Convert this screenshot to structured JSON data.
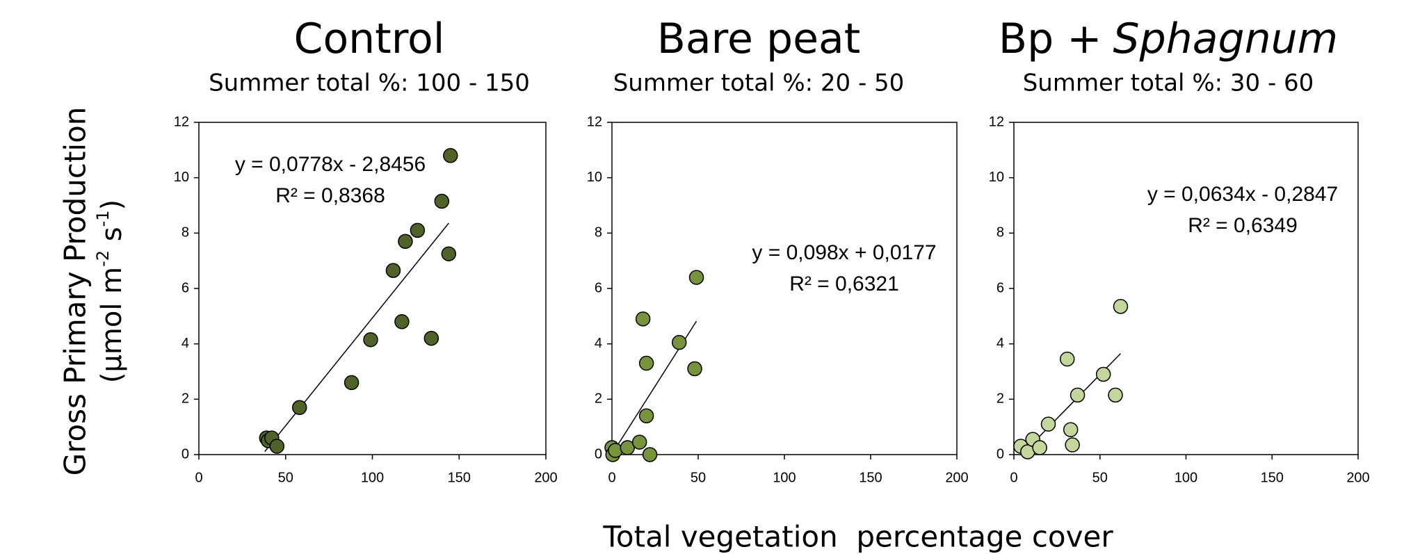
{
  "y_label": "Gross Primary Production",
  "y_unit_parts": [
    "(µmol m",
    "-2",
    " s",
    "-1",
    ")"
  ],
  "x_label": "Total vegetation  percentage cover",
  "chart_data": [
    {
      "type": "scatter",
      "title": "Control",
      "subtitle": "Summer total %: 100 - 150",
      "color": "#4f6228",
      "x": [
        39,
        40,
        42,
        45,
        58,
        88,
        99,
        112,
        117,
        119,
        126,
        134,
        140,
        144,
        145
      ],
      "values": [
        0.6,
        0.5,
        0.6,
        0.3,
        1.7,
        2.6,
        4.15,
        6.65,
        4.8,
        7.7,
        8.1,
        4.2,
        9.15,
        7.25,
        10.8
      ],
      "trendline": {
        "x": [
          38,
          144
        ],
        "y": [
          0.11,
          8.36
        ]
      },
      "equation": "y = 0,0778x - 2,8456",
      "r2": "R² = 0,8368",
      "xlim": [
        0,
        200
      ],
      "xticks": [
        0,
        50,
        100,
        150,
        200
      ],
      "ylim": [
        0,
        12
      ],
      "yticks": [
        0,
        2,
        4,
        6,
        8,
        10,
        12
      ]
    },
    {
      "type": "scatter",
      "title": "Bare peat",
      "subtitle": "Summer total %: 20 - 50",
      "color": "#77933c",
      "x": [
        0,
        0.5,
        2,
        9,
        16,
        18,
        20,
        20,
        22,
        39,
        48,
        49
      ],
      "values": [
        0.25,
        0,
        0.15,
        0.25,
        0.45,
        4.9,
        3.3,
        1.4,
        0,
        4.05,
        3.1,
        6.4
      ],
      "trendline": {
        "x": [
          0,
          49
        ],
        "y": [
          0.02,
          4.82
        ]
      },
      "equation": "y = 0,098x + 0,0177",
      "r2": "R² = 0,6321",
      "xlim": [
        0,
        200
      ],
      "xticks": [
        0,
        50,
        100,
        150,
        200
      ],
      "ylim": [
        0,
        12
      ],
      "yticks": [
        0,
        2,
        4,
        6,
        8,
        10,
        12
      ]
    },
    {
      "type": "scatter",
      "title": "Bp +",
      "title_italic": "Sphagnum",
      "subtitle": "Summer total %: 30 - 60",
      "color": "#c3d69b",
      "x": [
        4,
        8,
        11,
        15,
        20,
        31,
        33,
        34,
        37,
        52,
        59,
        62
      ],
      "values": [
        0.3,
        0.1,
        0.55,
        0.25,
        1.1,
        3.45,
        0.9,
        0.35,
        2.15,
        2.9,
        2.15,
        5.35
      ],
      "trendline": {
        "x": [
          5,
          62
        ],
        "y": [
          0.03,
          3.65
        ]
      },
      "equation": "y = 0,0634x - 0,2847",
      "r2": "R² = 0,6349",
      "xlim": [
        0,
        200
      ],
      "xticks": [
        0,
        50,
        100,
        150,
        200
      ],
      "ylim": [
        0,
        12
      ],
      "yticks": [
        0,
        2,
        4,
        6,
        8,
        10,
        12
      ]
    }
  ]
}
